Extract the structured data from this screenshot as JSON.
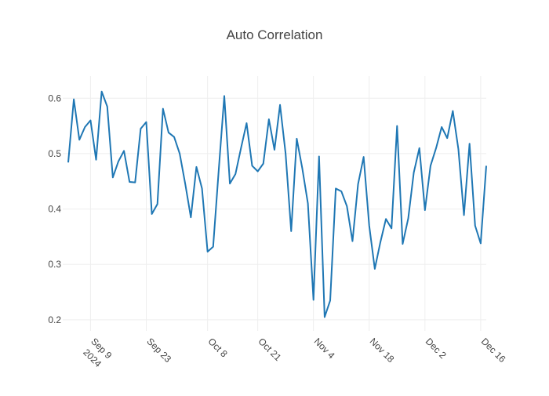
{
  "chart_data": {
    "type": "line",
    "title": "Auto Correlation",
    "x": [
      "2024-09-03",
      "2024-09-04",
      "2024-09-05",
      "2024-09-06",
      "2024-09-09",
      "2024-09-10",
      "2024-09-11",
      "2024-09-12",
      "2024-09-13",
      "2024-09-16",
      "2024-09-17",
      "2024-09-18",
      "2024-09-19",
      "2024-09-20",
      "2024-09-23",
      "2024-09-24",
      "2024-09-25",
      "2024-09-26",
      "2024-09-27",
      "2024-09-30",
      "2024-10-01",
      "2024-10-02",
      "2024-10-03",
      "2024-10-04",
      "2024-10-07",
      "2024-10-08",
      "2024-10-09",
      "2024-10-10",
      "2024-10-11",
      "2024-10-14",
      "2024-10-15",
      "2024-10-16",
      "2024-10-17",
      "2024-10-18",
      "2024-10-21",
      "2024-10-22",
      "2024-10-23",
      "2024-10-24",
      "2024-10-25",
      "2024-10-28",
      "2024-10-29",
      "2024-10-30",
      "2024-10-31",
      "2024-11-01",
      "2024-11-04",
      "2024-11-05",
      "2024-11-06",
      "2024-11-07",
      "2024-11-08",
      "2024-11-11",
      "2024-11-12",
      "2024-11-13",
      "2024-11-14",
      "2024-11-15",
      "2024-11-18",
      "2024-11-19",
      "2024-11-20",
      "2024-11-21",
      "2024-11-22",
      "2024-11-25",
      "2024-11-26",
      "2024-11-27",
      "2024-11-28",
      "2024-11-29",
      "2024-12-02",
      "2024-12-03",
      "2024-12-04",
      "2024-12-05",
      "2024-12-06",
      "2024-12-09",
      "2024-12-10",
      "2024-12-11",
      "2024-12-12",
      "2024-12-13",
      "2024-12-16",
      "2024-12-17"
    ],
    "series": [
      {
        "name": "Auto Correlation",
        "color": "#1f77b4",
        "values": [
          0.484,
          0.598,
          0.525,
          0.548,
          0.56,
          0.489,
          0.612,
          0.585,
          0.457,
          0.486,
          0.505,
          0.449,
          0.448,
          0.545,
          0.557,
          0.391,
          0.409,
          0.581,
          0.538,
          0.53,
          0.5,
          0.445,
          0.385,
          0.476,
          0.437,
          0.323,
          0.332,
          0.47,
          0.604,
          0.446,
          0.463,
          0.51,
          0.555,
          0.478,
          0.468,
          0.482,
          0.562,
          0.507,
          0.588,
          0.5,
          0.36,
          0.527,
          0.473,
          0.41,
          0.236,
          0.495,
          0.205,
          0.235,
          0.437,
          0.432,
          0.405,
          0.342,
          0.445,
          0.494,
          0.37,
          0.292,
          0.34,
          0.382,
          0.365,
          0.55,
          0.337,
          0.383,
          0.466,
          0.51,
          0.398,
          0.478,
          0.51,
          0.548,
          0.528,
          0.577,
          0.508,
          0.389,
          0.518,
          0.37,
          0.338,
          0.478
        ]
      }
    ],
    "rangebreaks": "weekends",
    "xlim": [
      "2024-09-03",
      "2024-12-17"
    ],
    "xticks": [
      {
        "value": "2024-09-09",
        "label": "Sep 9"
      },
      {
        "value": "2024-09-23",
        "label": "Sep 23"
      },
      {
        "value": "2024-10-08",
        "label": "Oct 8"
      },
      {
        "value": "2024-10-21",
        "label": "Oct 21"
      },
      {
        "value": "2024-11-04",
        "label": "Nov 4"
      },
      {
        "value": "2024-11-18",
        "label": "Nov 18"
      },
      {
        "value": "2024-12-02",
        "label": "Dec 2"
      },
      {
        "value": "2024-12-16",
        "label": "Dec 16"
      }
    ],
    "x_year_label": "2024",
    "ylim": [
      0.18,
      0.64
    ],
    "yticks": [
      0.2,
      0.3,
      0.4,
      0.5,
      0.6
    ],
    "grid": true
  }
}
